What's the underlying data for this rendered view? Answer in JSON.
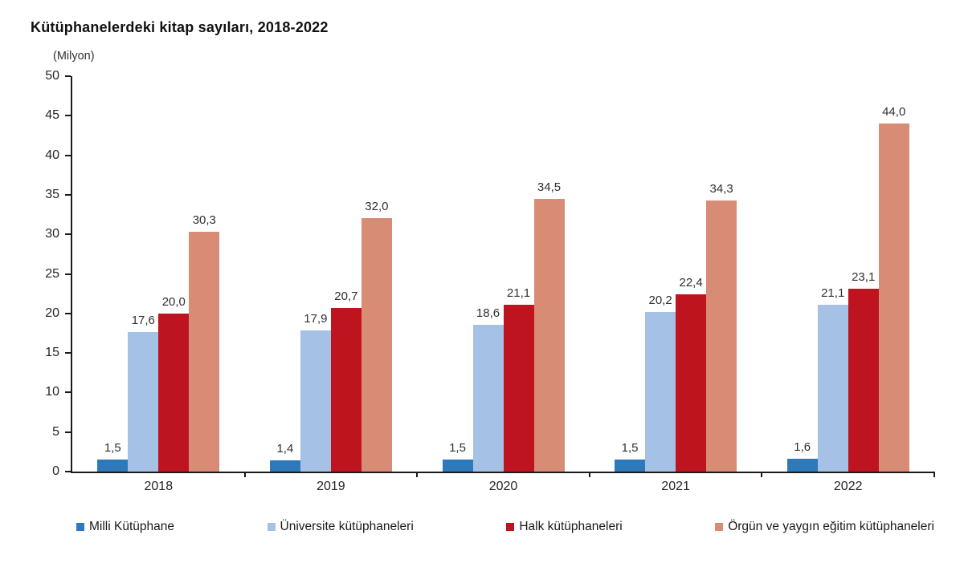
{
  "chart_data": {
    "type": "bar",
    "title": "Kütüphanelerdeki kitap sayıları, 2018-2022",
    "unit_label": "(Milyon)",
    "categories": [
      "2018",
      "2019",
      "2020",
      "2021",
      "2022"
    ],
    "series": [
      {
        "name": "Milli Kütüphane",
        "color": "#2e79b9",
        "values": [
          1.5,
          1.4,
          1.5,
          1.5,
          1.6
        ],
        "labels": [
          "1,5",
          "1,4",
          "1,5",
          "1,5",
          "1,6"
        ]
      },
      {
        "name": "Üniversite kütüphaneleri",
        "color": "#a6c1e6",
        "values": [
          17.6,
          17.9,
          18.6,
          20.2,
          21.1
        ],
        "labels": [
          "17,6",
          "17,9",
          "18,6",
          "20,2",
          "21,1"
        ]
      },
      {
        "name": "Halk kütüphaneleri",
        "color": "#be141f",
        "values": [
          20.0,
          20.7,
          21.1,
          22.4,
          23.1
        ],
        "labels": [
          "20,0",
          "20,7",
          "21,1",
          "22,4",
          "23,1"
        ]
      },
      {
        "name": "Örgün ve yaygın eğitim kütüphaneleri",
        "color": "#d98c75",
        "values": [
          30.3,
          32.0,
          34.5,
          34.3,
          44.0
        ],
        "labels": [
          "30,3",
          "32,0",
          "34,5",
          "34,3",
          "44,0"
        ]
      }
    ],
    "ylim": [
      0,
      50
    ],
    "ytick_step": 5,
    "grid": false,
    "legend_position": "bottom"
  }
}
